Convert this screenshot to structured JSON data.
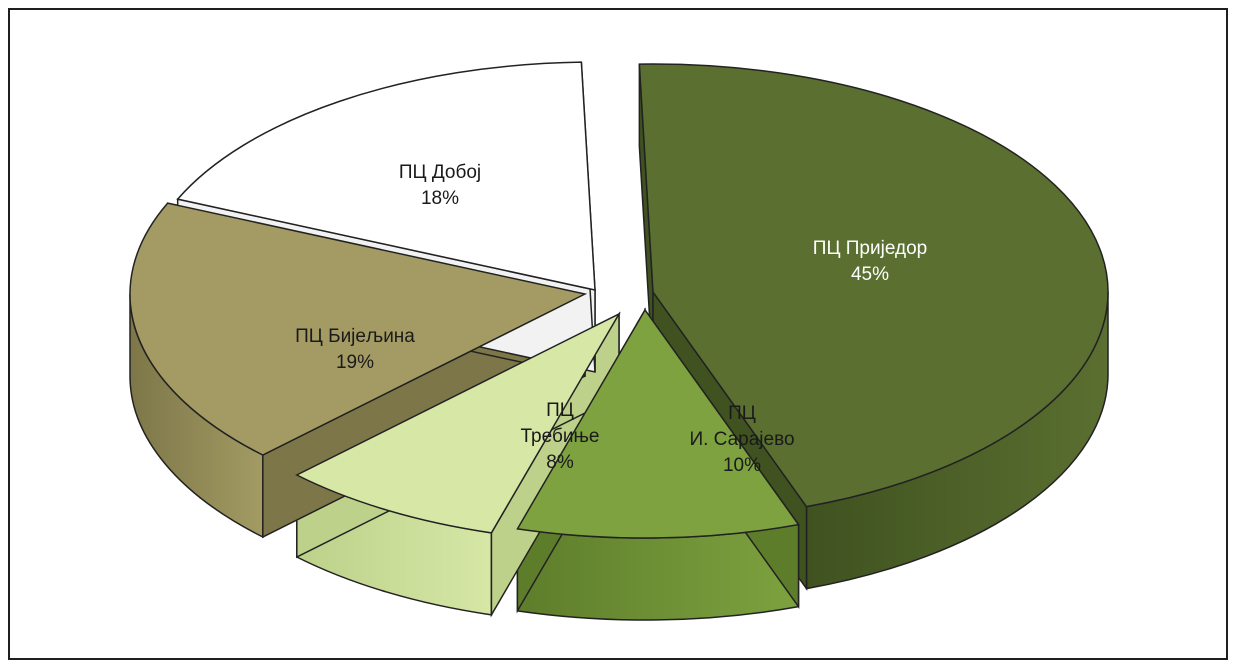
{
  "chart_data": {
    "type": "pie",
    "style": "3d-exploded",
    "title": "",
    "legend": "none",
    "slices": [
      {
        "label_lines": [
          "ПЦ Приједор"
        ],
        "value": 45,
        "value_label": "45%",
        "color": "#5a6f30",
        "side_color": "#3f5220"
      },
      {
        "label_lines": [
          "ПЦ",
          "И. Сарајево"
        ],
        "value": 10,
        "value_label": "10%",
        "color": "#7da23f",
        "side_color": "#5e7d2b"
      },
      {
        "label_lines": [
          "ПЦ",
          "Требиње"
        ],
        "value": 8,
        "value_label": "8%",
        "color": "#d6e7a6",
        "side_color": "#bdd18a"
      },
      {
        "label_lines": [
          "ПЦ Бијељина"
        ],
        "value": 19,
        "value_label": "19%",
        "color": "#a39b63",
        "side_color": "#7d7648"
      },
      {
        "label_lines": [
          "ПЦ Добој"
        ],
        "value": 18,
        "value_label": "18%",
        "color": "#ffffff",
        "side_color": "#f2f2f2"
      }
    ]
  }
}
